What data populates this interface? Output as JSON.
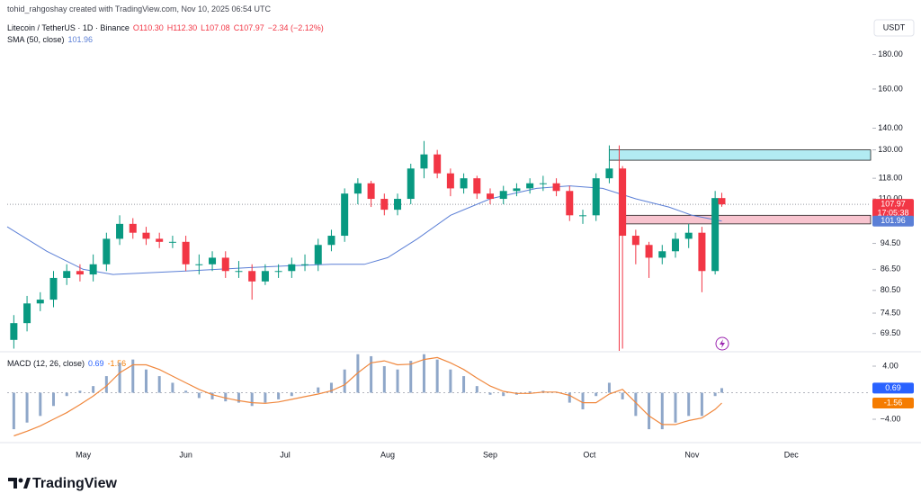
{
  "chart_data": {
    "type": "candlestick",
    "title": "tohid_rahgoshay created with TradingView.com, Nov 10, 2025 06:54 UTC",
    "symbol": "Litecoin / TetherUS · 1D · Binance",
    "ohlc_labels": [
      "O110.30",
      "H112.30",
      "L107.08",
      "C107.97",
      "−2.34 (−2.12%)"
    ],
    "currency": "USDT",
    "countdown": "17:05:38",
    "up_color": "#089981",
    "down_color": "#f23645",
    "x": [
      "2025-04-10",
      "2025-04-14",
      "2025-04-18",
      "2025-04-22",
      "2025-04-26",
      "2025-04-30",
      "2025-05-04",
      "2025-05-08",
      "2025-05-12",
      "2025-05-16",
      "2025-05-20",
      "2025-05-24",
      "2025-05-28",
      "2025-06-01",
      "2025-06-05",
      "2025-06-09",
      "2025-06-13",
      "2025-06-17",
      "2025-06-21",
      "2025-06-25",
      "2025-06-29",
      "2025-07-03",
      "2025-07-07",
      "2025-07-11",
      "2025-07-15",
      "2025-07-19",
      "2025-07-23",
      "2025-07-27",
      "2025-07-31",
      "2025-08-04",
      "2025-08-08",
      "2025-08-12",
      "2025-08-16",
      "2025-08-20",
      "2025-08-24",
      "2025-08-28",
      "2025-09-01",
      "2025-09-05",
      "2025-09-09",
      "2025-09-13",
      "2025-09-17",
      "2025-09-21",
      "2025-09-25",
      "2025-09-29",
      "2025-10-03",
      "2025-10-07",
      "2025-10-11",
      "2025-10-15",
      "2025-10-19",
      "2025-10-23",
      "2025-10-27",
      "2025-10-31",
      "2025-11-04",
      "2025-11-08",
      "2025-11-10"
    ],
    "open": [
      68,
      72,
      77,
      78,
      84,
      86,
      85,
      88,
      96,
      101,
      98,
      96,
      95,
      95,
      88,
      88,
      90,
      86,
      86,
      83,
      86,
      86,
      88,
      88,
      94,
      97,
      112,
      116,
      110,
      106,
      110,
      122,
      128,
      120,
      114,
      118,
      112,
      110,
      113,
      114,
      116,
      116,
      113,
      104,
      104,
      118,
      122,
      97,
      94,
      90,
      92,
      96,
      98,
      86,
      110.3
    ],
    "high": [
      74,
      79,
      80,
      86,
      88,
      88,
      91,
      98,
      104,
      103,
      100,
      98,
      97,
      97,
      91,
      92,
      92,
      89,
      88,
      88,
      88,
      90,
      91,
      96,
      99,
      114,
      118,
      117,
      112,
      112,
      124,
      134,
      130,
      122,
      120,
      119,
      114,
      115,
      116,
      118,
      119,
      118,
      115,
      106,
      120,
      132,
      123,
      99,
      95,
      94,
      98,
      101,
      100,
      113,
      112.3
    ],
    "low": [
      66,
      70,
      75,
      76,
      82,
      83,
      83,
      86,
      94,
      96,
      94,
      93,
      93,
      86,
      85,
      86,
      84,
      84,
      78,
      82,
      84,
      84,
      86,
      86,
      92,
      95,
      108,
      107,
      104,
      104,
      108,
      118,
      118,
      111,
      112,
      110,
      108,
      108,
      111,
      112,
      113,
      111,
      102,
      101,
      102,
      116,
      66,
      88,
      84,
      88,
      90,
      93,
      80,
      85,
      107.08
    ],
    "close": [
      72,
      77,
      78,
      84,
      86,
      85,
      88,
      96,
      101,
      98,
      96,
      95,
      95,
      88,
      88,
      90,
      86,
      86,
      83,
      86,
      86,
      88,
      88,
      94,
      97,
      112,
      116,
      110,
      106,
      110,
      122,
      128,
      120,
      114,
      118,
      112,
      110,
      113,
      114,
      116,
      116,
      113,
      104,
      104,
      118,
      122,
      97,
      94,
      90,
      92,
      96,
      98,
      86,
      110.3,
      107.97
    ],
    "sma": {
      "name": "SMA (50, close)",
      "color": "#5b7fd6",
      "x": [
        "2025-04-08",
        "2025-04-20",
        "2025-05-01",
        "2025-05-10",
        "2025-06-01",
        "2025-06-20",
        "2025-07-01",
        "2025-07-15",
        "2025-07-25",
        "2025-08-01",
        "2025-08-10",
        "2025-08-20",
        "2025-09-01",
        "2025-09-15",
        "2025-09-25",
        "2025-10-05",
        "2025-10-15",
        "2025-10-25",
        "2025-11-01",
        "2025-11-10"
      ],
      "values": [
        100,
        92,
        86.5,
        85,
        86,
        87,
        87.5,
        88,
        88,
        90,
        96,
        104,
        110,
        114,
        115,
        114,
        110,
        107,
        104,
        101.96
      ]
    },
    "zones": [
      {
        "low": 125.5,
        "high": 130,
        "start": "2025-10-07",
        "fill": "#b2ebf2"
      },
      {
        "low": 101,
        "high": 104,
        "start": "2025-10-10",
        "fill": "#f8c4cf"
      }
    ],
    "event_line": {
      "date": "2025-10-10",
      "color": "#f23645"
    },
    "log": true,
    "ylim": [
      65.5,
      207
    ],
    "yticks": [
      {
        "value": 180,
        "label": "180.00"
      },
      {
        "value": 160,
        "label": "160.00"
      },
      {
        "value": 140,
        "label": "140.00"
      },
      {
        "value": 130,
        "label": "130.00"
      },
      {
        "value": 118,
        "label": "118.00"
      },
      {
        "value": 110,
        "label": "110.00"
      },
      {
        "value": 94.5,
        "label": "94.50"
      },
      {
        "value": 86.5,
        "label": "86.50"
      },
      {
        "value": 80.5,
        "label": "80.50"
      },
      {
        "value": 74.5,
        "label": "74.50"
      },
      {
        "value": 69.5,
        "label": "69.50"
      }
    ],
    "xlim": [
      "2025-04-08",
      "2025-12-25"
    ],
    "xticks": [
      {
        "value": "2025-05-01",
        "label": "May"
      },
      {
        "value": "2025-06-01",
        "label": "Jun"
      },
      {
        "value": "2025-07-01",
        "label": "Jul"
      },
      {
        "value": "2025-08-01",
        "label": "Aug"
      },
      {
        "value": "2025-09-01",
        "label": "Sep"
      },
      {
        "value": "2025-10-01",
        "label": "Oct"
      },
      {
        "value": "2025-11-01",
        "label": "Nov"
      },
      {
        "value": "2025-12-01",
        "label": "Dec"
      }
    ],
    "macd": {
      "title": "MACD (12, 26, close)",
      "ylim": [
        -7.25,
        5.9
      ],
      "yticks": [
        {
          "value": 4,
          "label": "4.00"
        },
        {
          "value": -4,
          "label": "−4.00"
        }
      ],
      "histogram": {
        "color": "#8fa7c9",
        "values": [
          -5.5,
          -4.5,
          -3.5,
          -2,
          -0.5,
          0.3,
          1,
          2.5,
          4.5,
          5,
          3.5,
          2.5,
          1.5,
          0.3,
          -0.8,
          -1,
          -1.3,
          -1.5,
          -2,
          -1.5,
          -1,
          -0.5,
          0,
          0.8,
          1.5,
          3.5,
          5.8,
          5.5,
          4,
          3.5,
          4.8,
          5.8,
          5,
          3.5,
          2.5,
          1,
          -0.3,
          -0.5,
          -0.3,
          0.2,
          0.3,
          0,
          -1.5,
          -2.5,
          -0.5,
          1.5,
          -1,
          -3.5,
          -5.5,
          -5.5,
          -4.5,
          -3.5,
          -3.5,
          -0.5,
          0.69
        ]
      },
      "signal": {
        "color": "#f0883e",
        "values": [
          -6.5,
          -5.8,
          -5,
          -4,
          -3,
          -1.8,
          -0.5,
          1,
          3,
          4.2,
          4.2,
          3.5,
          2.5,
          1.5,
          0.5,
          -0.3,
          -0.8,
          -1.2,
          -1.5,
          -1.6,
          -1.4,
          -1,
          -0.6,
          -0.2,
          0.3,
          1.2,
          3,
          4.5,
          4.8,
          4.2,
          4.3,
          5,
          5.3,
          4.5,
          3.5,
          2.2,
          1,
          0.2,
          -0.1,
          -0.1,
          0.1,
          0.1,
          -0.4,
          -1.5,
          -1.5,
          -0.2,
          0.5,
          -1.5,
          -3.5,
          -4.8,
          -4.8,
          -4.2,
          -3.8,
          -2.5,
          -1.56
        ]
      },
      "label_colors": [
        "#2962ff",
        "#f57c00"
      ]
    }
  },
  "brand": "TradingView"
}
